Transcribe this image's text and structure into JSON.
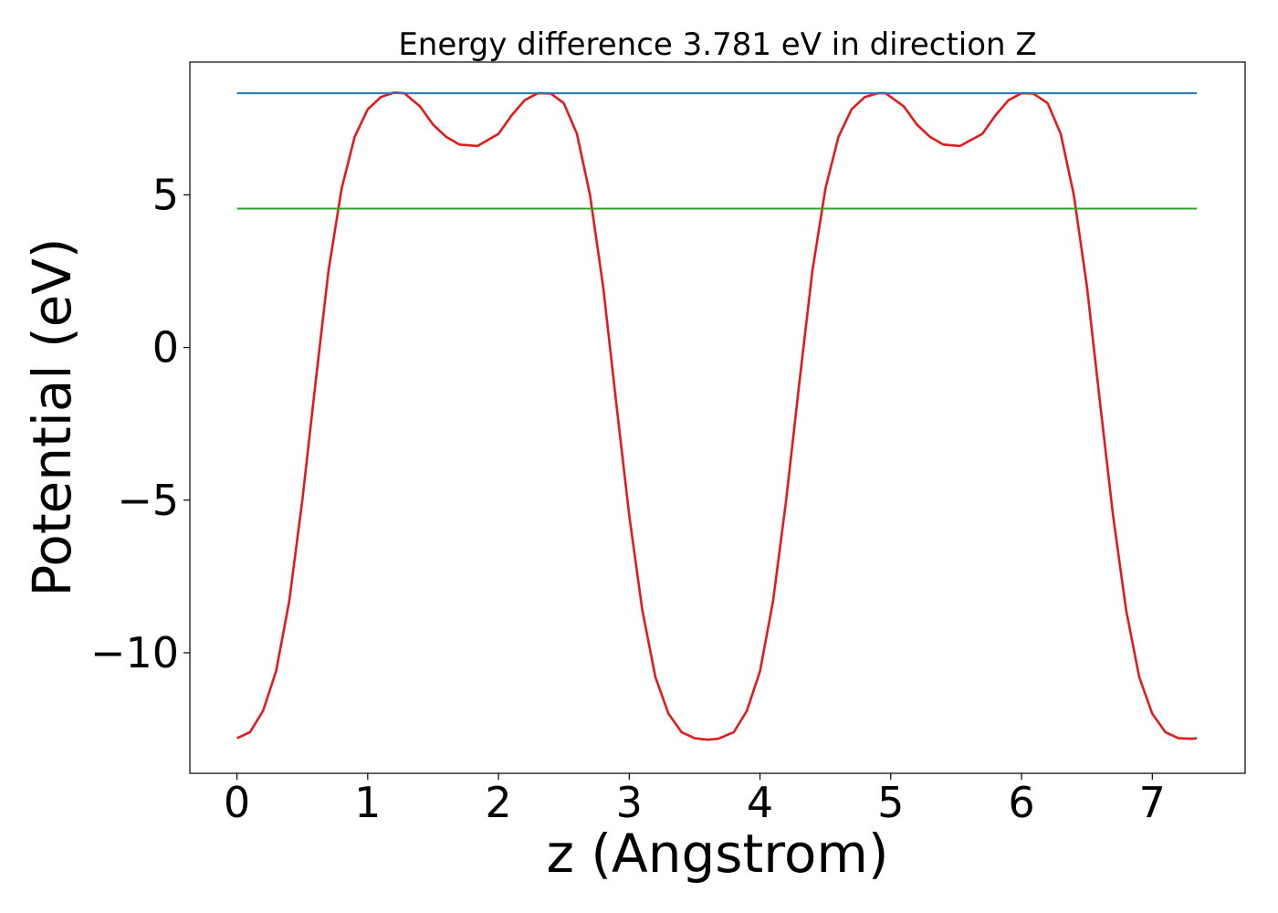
{
  "chart_data": {
    "type": "line",
    "title": "Energy difference 3.781 eV in direction Z",
    "xlabel": "z (Angstrom)",
    "ylabel": "Potential (eV)",
    "xlim": [
      -0.36,
      7.71
    ],
    "ylim": [
      -13.95,
      9.35
    ],
    "x_ticks": [
      0,
      1,
      2,
      3,
      4,
      5,
      6,
      7
    ],
    "x_tick_labels": [
      "0",
      "1",
      "2",
      "3",
      "4",
      "5",
      "6",
      "7"
    ],
    "y_ticks": [
      5,
      0,
      -5,
      -10
    ],
    "y_tick_labels": [
      "5",
      "0",
      "−5",
      "−10"
    ],
    "grid": false,
    "colors": {
      "potential": "#e31a1c",
      "upper_level": "#1f78b4",
      "lower_level": "#33a02c"
    },
    "series": [
      {
        "color": "#e31a1c",
        "x": [
          0.0,
          0.1,
          0.2,
          0.3,
          0.4,
          0.5,
          0.6,
          0.7,
          0.8,
          0.9,
          1.0,
          1.1,
          1.2,
          1.28,
          1.4,
          1.5,
          1.6,
          1.7,
          1.84,
          2.0,
          2.1,
          2.2,
          2.3,
          2.4,
          2.5,
          2.6,
          2.7,
          2.8,
          2.9,
          3.0,
          3.1,
          3.2,
          3.3,
          3.4,
          3.5,
          3.6,
          3.68,
          3.8,
          3.9,
          4.0,
          4.1,
          4.2,
          4.3,
          4.4,
          4.5,
          4.6,
          4.7,
          4.8,
          4.9,
          4.96,
          5.1,
          5.2,
          5.3,
          5.4,
          5.53,
          5.7,
          5.8,
          5.9,
          6.0,
          6.09,
          6.2,
          6.3,
          6.4,
          6.5,
          6.6,
          6.7,
          6.8,
          6.9,
          7.0,
          7.1,
          7.2,
          7.3,
          7.34
        ],
        "y": [
          -12.8,
          -12.6,
          -11.9,
          -10.6,
          -8.3,
          -5.0,
          -1.2,
          2.5,
          5.2,
          6.9,
          7.8,
          8.2,
          8.35,
          8.33,
          7.9,
          7.3,
          6.9,
          6.65,
          6.6,
          7.0,
          7.6,
          8.1,
          8.33,
          8.32,
          8.0,
          7.0,
          5.0,
          2.0,
          -1.8,
          -5.5,
          -8.6,
          -10.8,
          -12.0,
          -12.6,
          -12.8,
          -12.85,
          -12.82,
          -12.6,
          -11.9,
          -10.6,
          -8.3,
          -5.0,
          -1.2,
          2.5,
          5.2,
          6.9,
          7.8,
          8.2,
          8.33,
          8.33,
          7.9,
          7.3,
          6.9,
          6.65,
          6.6,
          7.0,
          7.6,
          8.1,
          8.33,
          8.32,
          8.0,
          7.0,
          5.0,
          2.0,
          -1.8,
          -5.5,
          -8.6,
          -10.8,
          -12.0,
          -12.6,
          -12.8,
          -12.82,
          -12.8
        ]
      },
      {
        "color": "#1f78b4",
        "x": [
          0.0,
          7.34
        ],
        "y": [
          8.33,
          8.33
        ]
      },
      {
        "color": "#33a02c",
        "x": [
          0.0,
          7.34
        ],
        "y": [
          4.55,
          4.55
        ]
      }
    ]
  }
}
